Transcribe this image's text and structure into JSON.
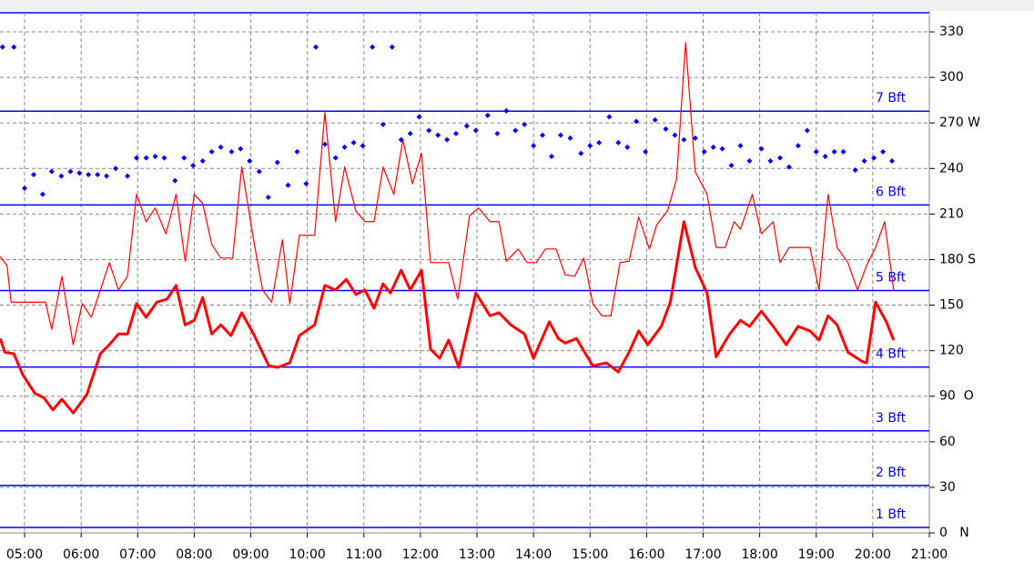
{
  "chart_data": {
    "type": "line",
    "xlim": [
      4.565,
      21
    ],
    "xticks": [
      {
        "value": 5,
        "label": "05:00"
      },
      {
        "value": 6,
        "label": "06:00"
      },
      {
        "value": 7,
        "label": "07:00"
      },
      {
        "value": 8,
        "label": "08:00"
      },
      {
        "value": 9,
        "label": "09:00"
      },
      {
        "value": 10,
        "label": "10:00"
      },
      {
        "value": 11,
        "label": "11:00"
      },
      {
        "value": 12,
        "label": "12:00"
      },
      {
        "value": 13,
        "label": "13:00"
      },
      {
        "value": 14,
        "label": "14:00"
      },
      {
        "value": 15,
        "label": "15:00"
      },
      {
        "value": 16,
        "label": "16:00"
      },
      {
        "value": 17,
        "label": "17:00"
      },
      {
        "value": 18,
        "label": "18:00"
      },
      {
        "value": 19,
        "label": "19:00"
      },
      {
        "value": 20,
        "label": "20:00"
      },
      {
        "value": 21,
        "label": "21:00"
      }
    ],
    "ylim": [
      0,
      342.6
    ],
    "yticks": [
      {
        "value": 0,
        "label": "0   N"
      },
      30,
      60,
      {
        "value": 90,
        "label": "90  O"
      },
      120,
      150,
      {
        "value": 180,
        "label": "180 S"
      },
      210,
      240,
      {
        "value": 270,
        "label": "270 W"
      },
      300,
      330
    ],
    "grid": true,
    "beaufort_lines": [
      {
        "value": 3.6,
        "label": "1 Bft"
      },
      {
        "value": 31.2,
        "label": "2 Bft"
      },
      {
        "value": 67.2,
        "label": "3 Bft"
      },
      {
        "value": 109.2,
        "label": "4 Bft"
      },
      {
        "value": 159.6,
        "label": "5 Bft"
      },
      {
        "value": 216,
        "label": "6 Bft"
      },
      {
        "value": 277.8,
        "label": "7 Bft"
      }
    ],
    "series": [
      {
        "color": "#ff0000",
        "style": "thick",
        "x": [
          4.57,
          4.65,
          4.81,
          4.97,
          5.18,
          5.34,
          5.5,
          5.66,
          5.86,
          6.1,
          6.34,
          6.5,
          6.66,
          6.82,
          6.98,
          7.15,
          7.34,
          7.52,
          7.68,
          7.84,
          8.0,
          8.15,
          8.31,
          8.47,
          8.65,
          8.84,
          9.05,
          9.32,
          9.48,
          9.69,
          9.86,
          10.13,
          10.31,
          10.5,
          10.69,
          10.86,
          11.02,
          11.18,
          11.34,
          11.47,
          11.66,
          11.82,
          12.02,
          12.18,
          12.34,
          12.5,
          12.68,
          12.98,
          13.23,
          13.39,
          13.6,
          13.84,
          14.0,
          14.28,
          14.44,
          14.56,
          14.76,
          15.05,
          15.29,
          15.5,
          15.69,
          15.86,
          16.02,
          16.26,
          16.42,
          16.66,
          16.86,
          17.07,
          17.23,
          17.47,
          17.66,
          17.82,
          18.03,
          18.24,
          18.47,
          18.68,
          18.89,
          19.05,
          19.21,
          19.37,
          19.56,
          19.81,
          19.89,
          20.05,
          20.24,
          20.37
        ],
        "values": [
          128,
          119,
          118,
          104,
          92,
          89,
          81,
          88,
          79,
          91,
          118,
          124,
          131,
          131,
          151,
          142,
          152,
          154,
          163,
          137,
          140,
          155,
          131,
          137,
          130,
          145,
          131,
          110,
          109,
          112,
          130,
          137,
          163,
          160,
          167,
          157,
          160,
          148,
          164,
          158,
          173,
          160,
          173,
          121,
          115,
          127,
          109,
          158,
          143,
          145,
          137,
          131,
          115,
          139,
          128,
          125,
          128,
          110,
          112,
          106,
          119,
          133,
          124,
          136,
          152,
          205,
          175,
          158,
          116,
          131,
          140,
          136,
          146,
          136,
          124,
          136,
          133,
          127,
          143,
          137,
          119,
          113,
          112,
          152,
          139,
          127
        ]
      },
      {
        "color": "#ff0000",
        "style": "thin",
        "x": [
          4.57,
          4.69,
          4.76,
          5.37,
          5.48,
          5.66,
          5.86,
          6.02,
          6.18,
          6.5,
          6.66,
          6.82,
          6.98,
          7.15,
          7.31,
          7.5,
          7.68,
          7.84,
          8.0,
          8.15,
          8.31,
          8.47,
          8.68,
          8.84,
          9.05,
          9.21,
          9.37,
          9.56,
          9.69,
          9.86,
          10.13,
          10.31,
          10.5,
          10.66,
          10.86,
          11.02,
          11.18,
          11.34,
          11.53,
          11.69,
          11.86,
          12.02,
          12.18,
          12.5,
          12.66,
          12.87,
          13.03,
          13.23,
          13.39,
          13.52,
          13.73,
          13.89,
          14.05,
          14.21,
          14.4,
          14.56,
          14.73,
          14.89,
          15.05,
          15.21,
          15.37,
          15.53,
          15.69,
          15.86,
          16.05,
          16.18,
          16.37,
          16.53,
          16.69,
          16.86,
          17.07,
          17.23,
          17.39,
          17.55,
          17.66,
          17.87,
          18.03,
          18.24,
          18.36,
          18.52,
          18.89,
          19.05,
          19.21,
          19.37,
          19.56,
          19.73,
          19.89,
          20.05,
          20.21,
          20.37
        ],
        "values": [
          182,
          176,
          152,
          152,
          134,
          169,
          124,
          151,
          142,
          178,
          160,
          169,
          223,
          205,
          214,
          197,
          223,
          179,
          223,
          217,
          190,
          181,
          181,
          241,
          193,
          160,
          152,
          193,
          151,
          196,
          196,
          277,
          205,
          241,
          212,
          205,
          205,
          241,
          223,
          259,
          230,
          250,
          178,
          178,
          154,
          209,
          214,
          205,
          205,
          179,
          187,
          178,
          178,
          187,
          187,
          170,
          169,
          181,
          151,
          143,
          143,
          178,
          179,
          208,
          187,
          203,
          212,
          233,
          323,
          238,
          223,
          188,
          188,
          205,
          200,
          223,
          197,
          205,
          178,
          188,
          188,
          160,
          223,
          188,
          178,
          160,
          176,
          188,
          205,
          160
        ]
      },
      {
        "color": "#0000ff",
        "style": "dots",
        "x": [
          4.61,
          4.81,
          5.0,
          5.16,
          5.32,
          5.48,
          5.65,
          5.81,
          5.97,
          6.13,
          6.29,
          6.45,
          6.61,
          6.82,
          6.98,
          7.15,
          7.31,
          7.47,
          7.66,
          7.82,
          7.98,
          8.15,
          8.31,
          8.47,
          8.66,
          8.82,
          8.98,
          9.15,
          9.31,
          9.47,
          9.66,
          9.82,
          9.98,
          10.15,
          10.31,
          10.5,
          10.66,
          10.82,
          10.98,
          11.15,
          11.34,
          11.5,
          11.66,
          11.82,
          11.98,
          12.15,
          12.31,
          12.47,
          12.63,
          12.82,
          12.98,
          13.19,
          13.36,
          13.52,
          13.68,
          13.84,
          14.0,
          14.16,
          14.32,
          14.48,
          14.65,
          14.84,
          15.0,
          15.16,
          15.34,
          15.5,
          15.66,
          15.82,
          15.98,
          16.15,
          16.34,
          16.5,
          16.66,
          16.86,
          17.02,
          17.18,
          17.34,
          17.5,
          17.66,
          17.82,
          18.03,
          18.19,
          18.36,
          18.52,
          18.68,
          18.84,
          19.0,
          19.16,
          19.32,
          19.48,
          19.69,
          19.85,
          20.02,
          20.18,
          20.34
        ],
        "values": [
          320,
          320,
          227,
          236,
          223,
          238,
          235,
          238,
          237,
          236,
          236,
          235,
          240,
          235,
          247,
          247,
          248,
          247,
          232,
          247,
          242,
          245,
          251,
          254,
          251,
          253,
          245,
          238,
          221,
          244,
          229,
          251,
          230,
          320,
          256,
          247,
          254,
          257,
          255,
          320,
          269,
          320,
          259,
          263,
          274,
          265,
          262,
          259,
          263,
          268,
          265,
          275,
          263,
          278,
          265,
          269,
          255,
          262,
          248,
          262,
          260,
          250,
          255,
          257,
          274,
          257,
          254,
          271,
          251,
          272,
          266,
          262,
          259,
          260,
          251,
          254,
          253,
          242,
          255,
          245,
          253,
          245,
          247,
          241,
          255,
          265,
          251,
          248,
          251,
          251,
          239,
          245,
          247,
          251,
          245
        ]
      }
    ]
  }
}
